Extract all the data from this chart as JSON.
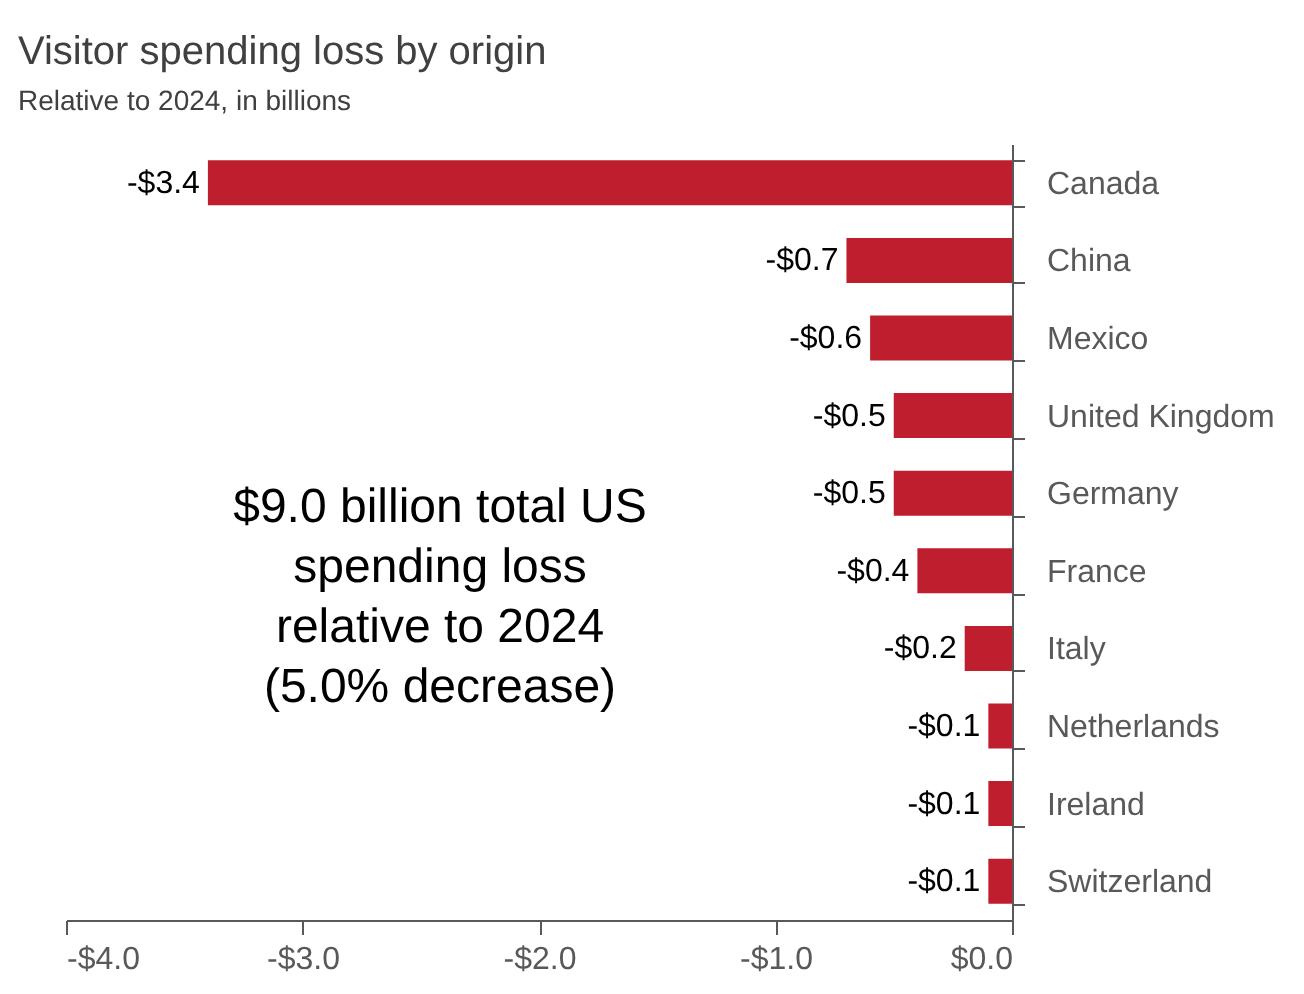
{
  "chart_data": {
    "type": "bar",
    "orientation": "horizontal",
    "title": "Visitor spending loss by origin",
    "subtitle": "Relative to 2024, in billions",
    "categories": [
      "Canada",
      "China",
      "Mexico",
      "United Kingdom",
      "Germany",
      "France",
      "Italy",
      "Netherlands",
      "Ireland",
      "Switzerland"
    ],
    "values": [
      -3.4,
      -0.7,
      -0.6,
      -0.5,
      -0.5,
      -0.4,
      -0.2,
      -0.1,
      -0.1,
      -0.1
    ],
    "value_labels": [
      "-$3.4",
      "-$0.7",
      "-$0.6",
      "-$0.5",
      "-$0.5",
      "-$0.4",
      "-$0.2",
      "-$0.1",
      "-$0.1",
      "-$0.1"
    ],
    "color": "#be1e2d",
    "xlim": [
      -4,
      0
    ],
    "xticks": [
      {
        "value": -4,
        "label": "-$4.0"
      },
      {
        "value": -3,
        "label": "-$3.0"
      },
      {
        "value": -2,
        "label": "-$2.0"
      },
      {
        "value": -1,
        "label": "-$1.0"
      },
      {
        "value": 0,
        "label": "$0.0"
      }
    ],
    "grid": false,
    "annotations": [
      "$9.0 billion total US\nspending loss\nrelative to 2024\n(5.0% decrease)"
    ]
  }
}
